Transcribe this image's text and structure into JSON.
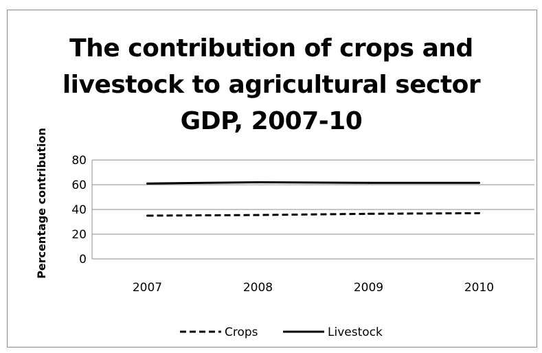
{
  "chart_data": {
    "type": "line",
    "title": "The contribution of crops and\nlivestock to agricultural sector\nGDP, 2007-10",
    "xlabel": "",
    "ylabel": "Percentage contribution",
    "categories": [
      "2007",
      "2008",
      "2009",
      "2010"
    ],
    "ylim": [
      0,
      80
    ],
    "yticks": [
      0,
      20,
      40,
      60,
      80
    ],
    "grid": true,
    "legend_position": "bottom",
    "series": [
      {
        "name": "Crops",
        "values": [
          35,
          35.5,
          36.5,
          37
        ],
        "style": "dashed",
        "color": "#000000"
      },
      {
        "name": "Livestock",
        "values": [
          61,
          62,
          61.5,
          61.5
        ],
        "style": "solid",
        "color": "#000000"
      }
    ]
  }
}
